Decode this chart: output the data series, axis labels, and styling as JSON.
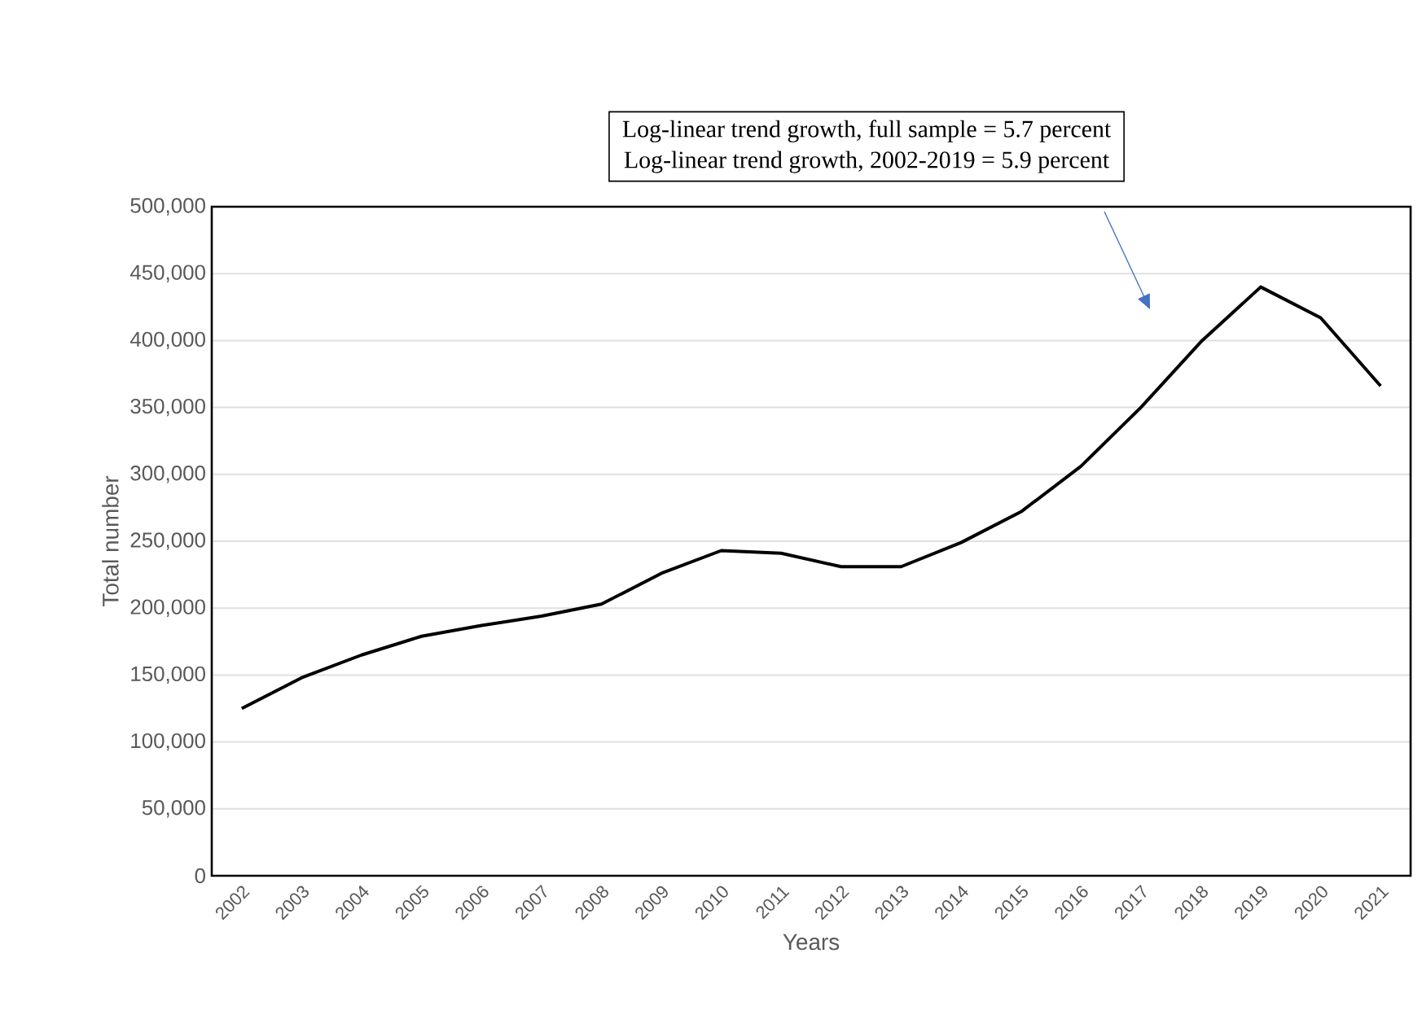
{
  "chart_data": {
    "type": "line",
    "xlabel": "Years",
    "ylabel": "Total number",
    "categories": [
      "2002",
      "2003",
      "2004",
      "2005",
      "2006",
      "2007",
      "2008",
      "2009",
      "2010",
      "2011",
      "2012",
      "2013",
      "2014",
      "2015",
      "2016",
      "2017",
      "2018",
      "2019",
      "2020",
      "2021"
    ],
    "series": [
      {
        "color": "#000000",
        "values": [
          125000,
          148000,
          165000,
          179000,
          187000,
          194000,
          203000,
          226000,
          243000,
          241000,
          231000,
          231000,
          249000,
          272000,
          306000,
          350000,
          399000,
          440000,
          417000,
          366000
        ]
      }
    ],
    "ylim": [
      0,
      500000
    ],
    "yticks": [
      {
        "value": 0,
        "label": "0"
      },
      {
        "value": 50000,
        "label": "50,000"
      },
      {
        "value": 100000,
        "label": "100,000"
      },
      {
        "value": 150000,
        "label": "150,000"
      },
      {
        "value": 200000,
        "label": "200,000"
      },
      {
        "value": 250000,
        "label": "250,000"
      },
      {
        "value": 300000,
        "label": "300,000"
      },
      {
        "value": 350000,
        "label": "350,000"
      },
      {
        "value": 400000,
        "label": "400,000"
      },
      {
        "value": 450000,
        "label": "450,000"
      },
      {
        "value": 500000,
        "label": "500,000"
      }
    ],
    "grid": "y",
    "marker": "none",
    "line_style": "solid",
    "annotations": [
      "Log-linear trend growth, full sample =  5.7 percent",
      "Log-linear trend growth, 2002-2019 =  5.9 percent"
    ]
  }
}
